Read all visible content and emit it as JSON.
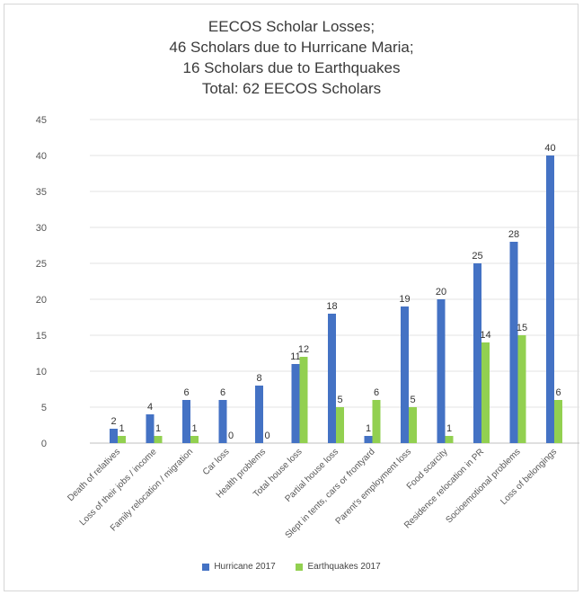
{
  "chart_data": {
    "type": "bar",
    "title_lines": [
      "EECOS Scholar Losses;",
      "46 Scholars due to Hurricane Maria;",
      "16 Scholars due to Earthquakes",
      "Total: 62 EECOS Scholars"
    ],
    "categories": [
      "Death of relatives",
      "Loss of their jobs / income",
      "Family relocation / migration",
      "Car loss",
      "Health problems",
      "Total house loss",
      "Partial house loss",
      "Slept in tents, cars or frontyard",
      "Parent's employment loss",
      "Food scarcity",
      "Residence relocation in PR",
      "Socioemotional problems",
      "Loss of belongings"
    ],
    "series": [
      {
        "name": "Hurricane 2017",
        "color": "#4472c4",
        "values": [
          2,
          4,
          6,
          6,
          8,
          11,
          18,
          1,
          19,
          20,
          25,
          28,
          40
        ]
      },
      {
        "name": "Earthquakes 2017",
        "color": "#92d050",
        "values": [
          1,
          1,
          1,
          0,
          0,
          12,
          5,
          6,
          5,
          1,
          14,
          15,
          6
        ]
      }
    ],
    "ylim": [
      0,
      45
    ],
    "yticks": [
      0,
      5,
      10,
      15,
      20,
      25,
      30,
      35,
      40,
      45
    ],
    "grid": true,
    "legend_position": "bottom"
  }
}
